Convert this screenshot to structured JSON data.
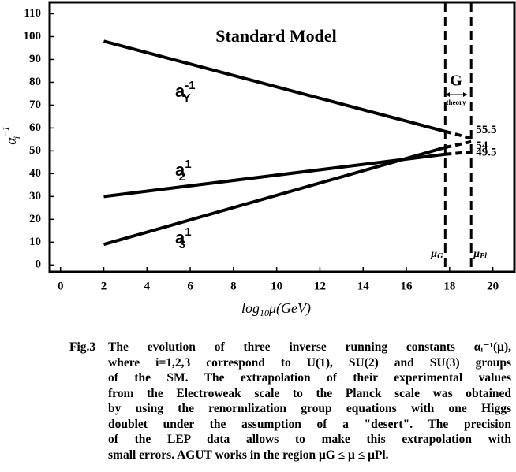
{
  "chart_data": {
    "type": "line",
    "title": "Standard Model",
    "xlabel": {
      "base": "log",
      "sub": "10",
      "rest": "μ(GeV)"
    },
    "ylabel": {
      "base": "α",
      "sub": "i",
      "sup": "−1"
    },
    "series": [
      {
        "name": "a",
        "sub": "Y",
        "sup": "-1",
        "color": "#000000",
        "x": [
          2,
          17.8,
          19
        ],
        "values": [
          98,
          58.5,
          55.5
        ]
      },
      {
        "name": "a",
        "sub": "2",
        "sup": "1",
        "color": "#000000",
        "x": [
          2,
          17.8,
          19
        ],
        "values": [
          30,
          48.5,
          49.5
        ]
      },
      {
        "name": "a",
        "sub": "3",
        "sup": "1",
        "color": "#000000",
        "x": [
          2,
          17.8,
          19
        ],
        "values": [
          9,
          51.5,
          54
        ]
      }
    ],
    "vlines": [
      {
        "x": 17.8,
        "base": "μ",
        "sub": "G"
      },
      {
        "x": 19,
        "base": "μ",
        "sub": "Pl"
      }
    ],
    "annotation": {
      "text": "G",
      "sub": "theory"
    },
    "end_labels": true,
    "xlim": [
      -0.5,
      21
    ],
    "ylim": [
      -3,
      115
    ],
    "xticks": [
      0,
      2,
      4,
      6,
      8,
      10,
      12,
      14,
      16,
      18,
      20
    ],
    "yticks": [
      0,
      10,
      20,
      30,
      40,
      50,
      60,
      70,
      80,
      90,
      100,
      110
    ],
    "grid": false
  },
  "caption": {
    "label": "Fig.3",
    "lines": [
      "The evolution of three inverse running constants αᵢ⁻¹(μ),",
      "where i=1,2,3 correspond to U(1), SU(2) and SU(3) groups",
      "of the SM. The extrapolation of their experimental values",
      "from the Electroweak scale to the Planck scale was obtained",
      "by using the renormlization group equations with one Higgs",
      "doublet under the assumption of a \"desert\". The precision",
      "of the LEP data allows to make this extrapolation with",
      "small errors. AGUT works in the region μG ≤ μ ≤ μPl."
    ]
  }
}
